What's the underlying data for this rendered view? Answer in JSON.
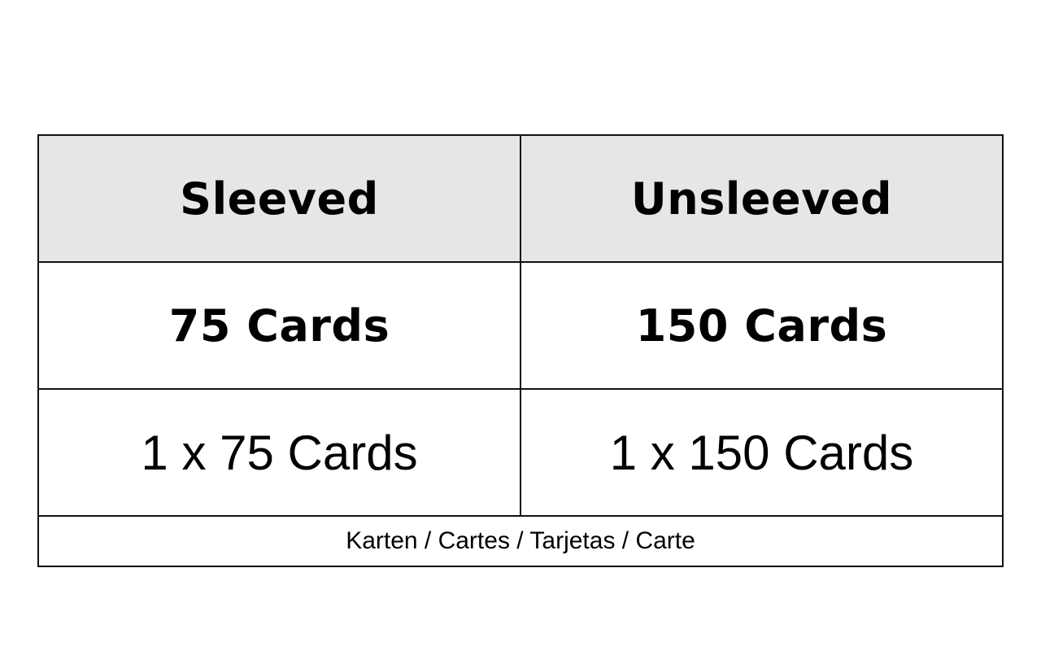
{
  "table": {
    "header": [
      "Sleeved",
      "Unsleeved"
    ],
    "capacity": [
      "75 Cards",
      "150 Cards"
    ],
    "configuration": [
      "1 x 75 Cards",
      "1 x 150 Cards"
    ],
    "footer": "Karten / Cartes / Tarjetas / Carte"
  },
  "colors": {
    "header_bg": "#e6e6e6",
    "border": "#111111"
  }
}
